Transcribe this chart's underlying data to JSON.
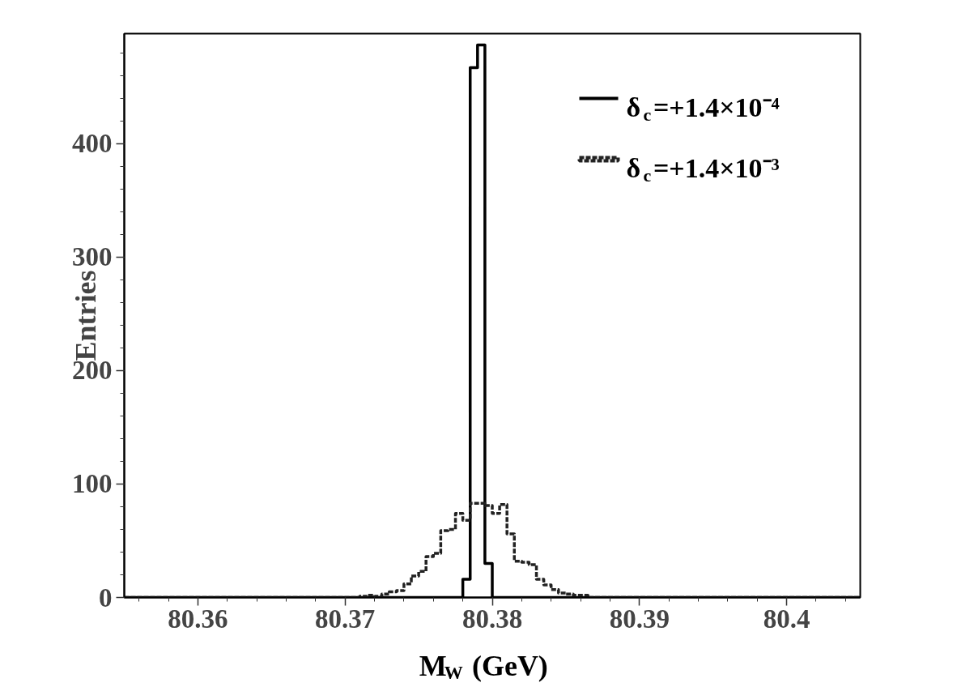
{
  "chart_data": {
    "type": "histogram",
    "xlabel": "M$_{W}$ (GeV)",
    "ylabel": "Entries",
    "bins": [
      80.355,
      80.3555,
      80.356,
      80.3565,
      80.357,
      80.3575,
      80.358,
      80.3585,
      80.359,
      80.3595,
      80.36,
      80.3605,
      80.361,
      80.3615,
      80.362,
      80.3625,
      80.363,
      80.3635,
      80.364,
      80.3645,
      80.365,
      80.3655,
      80.366,
      80.3665,
      80.367,
      80.3675,
      80.368,
      80.3685,
      80.369,
      80.3695,
      80.37,
      80.3705,
      80.371,
      80.3715,
      80.372,
      80.3725,
      80.373,
      80.3735,
      80.374,
      80.3745,
      80.375,
      80.3755,
      80.376,
      80.3765,
      80.377,
      80.3775,
      80.378,
      80.3785,
      80.379,
      80.3795,
      80.38,
      80.3805,
      80.381,
      80.3815,
      80.382,
      80.3825,
      80.383,
      80.3835,
      80.384,
      80.3845,
      80.385,
      80.3855,
      80.386,
      80.3865,
      80.387,
      80.3875,
      80.388,
      80.3885,
      80.389,
      80.3895,
      80.39,
      80.3905,
      80.391,
      80.3915,
      80.392,
      80.3925,
      80.393,
      80.3935,
      80.394,
      80.3945,
      80.395,
      80.3955,
      80.396,
      80.3965,
      80.397,
      80.3975,
      80.398,
      80.3985,
      80.399,
      80.3995,
      80.4,
      80.4005,
      80.401,
      80.4015,
      80.402,
      80.4025,
      80.403,
      80.4035,
      80.404,
      80.4045,
      80.405
    ],
    "series": [
      {
        "name": "δ$_{c}$=+1.4×10⁻⁴",
        "color": "#000000",
        "line_style": "solid",
        "values": [
          0,
          0,
          0,
          0,
          0,
          0,
          0,
          0,
          0,
          0,
          0,
          0,
          0,
          0,
          0,
          0,
          0,
          0,
          0,
          0,
          0,
          0,
          0,
          0,
          0,
          0,
          0,
          0,
          0,
          0,
          0,
          0,
          0,
          0,
          0,
          0,
          0,
          0,
          0,
          0,
          0,
          0,
          0,
          0,
          0,
          0,
          16,
          467,
          487,
          30,
          0,
          0,
          0,
          0,
          0,
          0,
          0,
          0,
          0,
          0,
          0,
          0,
          0,
          0,
          0,
          0,
          0,
          0,
          0,
          0,
          0,
          0,
          0,
          0,
          0,
          0,
          0,
          0,
          0,
          0,
          0,
          0,
          0,
          0,
          0,
          0,
          0,
          0,
          0,
          0,
          0,
          0,
          0,
          0,
          0,
          0,
          0,
          0,
          0,
          0
        ]
      },
      {
        "name": "δ$_{c}$=+1.4×10⁻³",
        "color": "#222222",
        "line_style": "dotted",
        "values": [
          0,
          0,
          0,
          0,
          0,
          0,
          0,
          0,
          0,
          0,
          0,
          0,
          0,
          0,
          0,
          0,
          0,
          0,
          0,
          0,
          0,
          0,
          0,
          0,
          0,
          0,
          0,
          0,
          0,
          0,
          0,
          0,
          1,
          2,
          1,
          3,
          5,
          6,
          12,
          19,
          23,
          36,
          39,
          59,
          60,
          74,
          68,
          83,
          83,
          81,
          74,
          82,
          56,
          32,
          31,
          29,
          16,
          11,
          7,
          4,
          3,
          2,
          2,
          0,
          0,
          0,
          0,
          0,
          0,
          0,
          0,
          0,
          0,
          0,
          0,
          0,
          0,
          0,
          0,
          0,
          0,
          0,
          0,
          0,
          0,
          0,
          0,
          0,
          0,
          0,
          0,
          0,
          0,
          0,
          0,
          0,
          0,
          0,
          0,
          0
        ]
      }
    ],
    "xlim": [
      80.355,
      80.405
    ],
    "xticks": [
      80.36,
      80.37,
      80.38,
      80.39,
      80.4
    ],
    "ylim": [
      0,
      497
    ],
    "yticks": [
      0,
      100,
      200,
      300,
      400
    ],
    "grid": false,
    "legend": "top right"
  }
}
